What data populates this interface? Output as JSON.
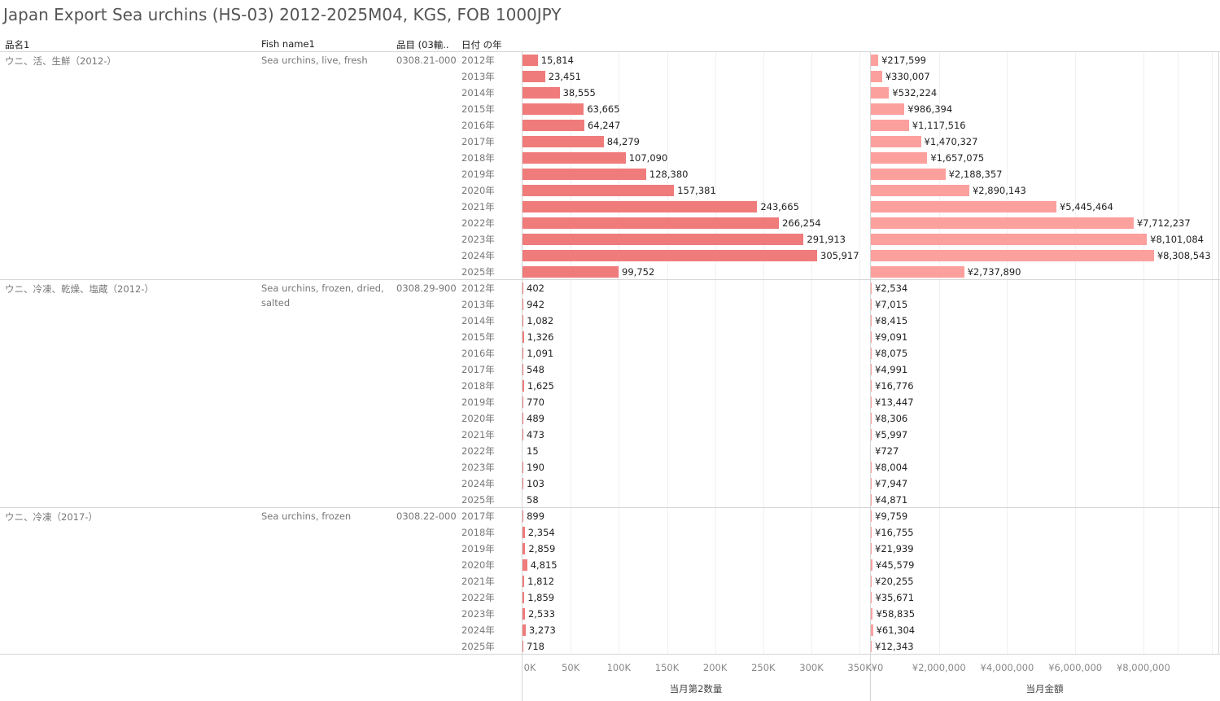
{
  "title": "Japan Export Sea urchins (HS-03) 2012-2025M04, KGS, FOB 1000JPY",
  "headers": {
    "name_jp": "品名1",
    "name_en": "Fish name1",
    "code": "品目 (03輸..",
    "year": "日付 の年"
  },
  "colors": {
    "quantity_bar": "#f07b7b",
    "value_bar": "#fca09e"
  },
  "chart_data": [
    {
      "type": "bar",
      "orientation": "horizontal",
      "measure": "quantity",
      "axis_title": "当月第2数量",
      "xlim": [
        0,
        360000
      ],
      "ticks": [
        0,
        50000,
        100000,
        150000,
        200000,
        250000,
        300000,
        350000
      ],
      "tick_labels": [
        "0K",
        "50K",
        "100K",
        "150K",
        "200K",
        "250K",
        "300K",
        "350K"
      ]
    },
    {
      "type": "bar",
      "orientation": "horizontal",
      "measure": "value",
      "axis_title": "当月金額",
      "xlim": [
        0,
        10200000
      ],
      "ticks": [
        0,
        2000000,
        4000000,
        6000000,
        8000000
      ],
      "tick_labels": [
        "¥0",
        "¥2,000,000",
        "¥4,000,000",
        "¥6,000,000",
        "¥8,000,000"
      ]
    }
  ],
  "groups": [
    {
      "name_jp": "ウニ、活、生鮮（2012-）",
      "name_en": "Sea urchins, live, fresh",
      "code": "0308.21-000",
      "rows": [
        {
          "year": "2012年",
          "qty": 15814,
          "qty_label": "15,814",
          "val": 217599,
          "val_label": "¥217,599"
        },
        {
          "year": "2013年",
          "qty": 23451,
          "qty_label": "23,451",
          "val": 330007,
          "val_label": "¥330,007"
        },
        {
          "year": "2014年",
          "qty": 38555,
          "qty_label": "38,555",
          "val": 532224,
          "val_label": "¥532,224"
        },
        {
          "year": "2015年",
          "qty": 63665,
          "qty_label": "63,665",
          "val": 986394,
          "val_label": "¥986,394"
        },
        {
          "year": "2016年",
          "qty": 64247,
          "qty_label": "64,247",
          "val": 1117516,
          "val_label": "¥1,117,516"
        },
        {
          "year": "2017年",
          "qty": 84279,
          "qty_label": "84,279",
          "val": 1470327,
          "val_label": "¥1,470,327"
        },
        {
          "year": "2018年",
          "qty": 107090,
          "qty_label": "107,090",
          "val": 1657075,
          "val_label": "¥1,657,075"
        },
        {
          "year": "2019年",
          "qty": 128380,
          "qty_label": "128,380",
          "val": 2188357,
          "val_label": "¥2,188,357"
        },
        {
          "year": "2020年",
          "qty": 157381,
          "qty_label": "157,381",
          "val": 2890143,
          "val_label": "¥2,890,143"
        },
        {
          "year": "2021年",
          "qty": 243665,
          "qty_label": "243,665",
          "val": 5445464,
          "val_label": "¥5,445,464"
        },
        {
          "year": "2022年",
          "qty": 266254,
          "qty_label": "266,254",
          "val": 7712237,
          "val_label": "¥7,712,237"
        },
        {
          "year": "2023年",
          "qty": 291913,
          "qty_label": "291,913",
          "val": 8101084,
          "val_label": "¥8,101,084"
        },
        {
          "year": "2024年",
          "qty": 305917,
          "qty_label": "305,917",
          "val": 8308543,
          "val_label": "¥8,308,543"
        },
        {
          "year": "2025年",
          "qty": 99752,
          "qty_label": "99,752",
          "val": 2737890,
          "val_label": "¥2,737,890"
        }
      ]
    },
    {
      "name_jp": "ウニ、冷凍、乾燥、塩蔵（2012-）",
      "name_en": "Sea urchins, frozen, dried, salted",
      "code": "0308.29-900",
      "rows": [
        {
          "year": "2012年",
          "qty": 402,
          "qty_label": "402",
          "val": 2534,
          "val_label": "¥2,534"
        },
        {
          "year": "2013年",
          "qty": 942,
          "qty_label": "942",
          "val": 7015,
          "val_label": "¥7,015"
        },
        {
          "year": "2014年",
          "qty": 1082,
          "qty_label": "1,082",
          "val": 8415,
          "val_label": "¥8,415"
        },
        {
          "year": "2015年",
          "qty": 1326,
          "qty_label": "1,326",
          "val": 9091,
          "val_label": "¥9,091"
        },
        {
          "year": "2016年",
          "qty": 1091,
          "qty_label": "1,091",
          "val": 8075,
          "val_label": "¥8,075"
        },
        {
          "year": "2017年",
          "qty": 548,
          "qty_label": "548",
          "val": 4991,
          "val_label": "¥4,991"
        },
        {
          "year": "2018年",
          "qty": 1625,
          "qty_label": "1,625",
          "val": 16776,
          "val_label": "¥16,776"
        },
        {
          "year": "2019年",
          "qty": 770,
          "qty_label": "770",
          "val": 13447,
          "val_label": "¥13,447"
        },
        {
          "year": "2020年",
          "qty": 489,
          "qty_label": "489",
          "val": 8306,
          "val_label": "¥8,306"
        },
        {
          "year": "2021年",
          "qty": 473,
          "qty_label": "473",
          "val": 5997,
          "val_label": "¥5,997"
        },
        {
          "year": "2022年",
          "qty": 15,
          "qty_label": "15",
          "val": 727,
          "val_label": "¥727"
        },
        {
          "year": "2023年",
          "qty": 190,
          "qty_label": "190",
          "val": 8004,
          "val_label": "¥8,004"
        },
        {
          "year": "2024年",
          "qty": 103,
          "qty_label": "103",
          "val": 7947,
          "val_label": "¥7,947"
        },
        {
          "year": "2025年",
          "qty": 58,
          "qty_label": "58",
          "val": 4871,
          "val_label": "¥4,871"
        }
      ]
    },
    {
      "name_jp": "ウニ、冷凍（2017-）",
      "name_en": "Sea urchins, frozen",
      "code": "0308.22-000",
      "rows": [
        {
          "year": "2017年",
          "qty": 899,
          "qty_label": "899",
          "val": 9759,
          "val_label": "¥9,759"
        },
        {
          "year": "2018年",
          "qty": 2354,
          "qty_label": "2,354",
          "val": 16755,
          "val_label": "¥16,755"
        },
        {
          "year": "2019年",
          "qty": 2859,
          "qty_label": "2,859",
          "val": 21939,
          "val_label": "¥21,939"
        },
        {
          "year": "2020年",
          "qty": 4815,
          "qty_label": "4,815",
          "val": 45579,
          "val_label": "¥45,579"
        },
        {
          "year": "2021年",
          "qty": 1812,
          "qty_label": "1,812",
          "val": 20255,
          "val_label": "¥20,255"
        },
        {
          "year": "2022年",
          "qty": 1859,
          "qty_label": "1,859",
          "val": 35671,
          "val_label": "¥35,671"
        },
        {
          "year": "2023年",
          "qty": 2533,
          "qty_label": "2,533",
          "val": 58835,
          "val_label": "¥58,835"
        },
        {
          "year": "2024年",
          "qty": 3273,
          "qty_label": "3,273",
          "val": 61304,
          "val_label": "¥61,304"
        },
        {
          "year": "2025年",
          "qty": 718,
          "qty_label": "718",
          "val": 12343,
          "val_label": "¥12,343"
        }
      ]
    }
  ]
}
